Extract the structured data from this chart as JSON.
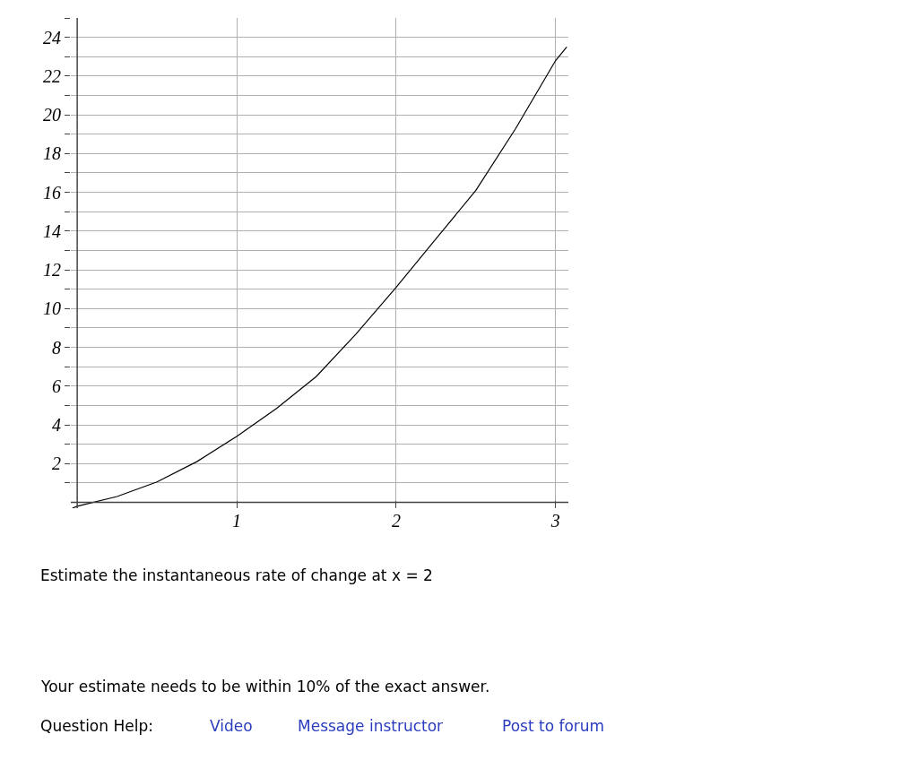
{
  "chart_data": {
    "type": "line",
    "x": [
      -0.03,
      0,
      0.25,
      0.5,
      0.75,
      1,
      1.25,
      1.5,
      1.75,
      2,
      2.25,
      2.5,
      2.75,
      3,
      3.07
    ],
    "series": [
      {
        "color": "#000000",
        "values": [
          -0.3,
          -0.2,
          0.3,
          1.05,
          2.1,
          3.4,
          4.85,
          6.5,
          8.7,
          11.1,
          13.6,
          16.1,
          19.3,
          22.8,
          23.5
        ]
      }
    ],
    "xlim": [
      -0.04,
      3.08
    ],
    "ylim": [
      -0.3,
      25
    ],
    "xticks": [
      1,
      2,
      3
    ],
    "yticks": [
      {
        "value": 1,
        "label": null
      },
      2,
      {
        "value": 3,
        "label": null
      },
      4,
      {
        "value": 5,
        "label": null
      },
      6,
      {
        "value": 7,
        "label": null
      },
      8,
      {
        "value": 9,
        "label": null
      },
      10,
      {
        "value": 11,
        "label": null
      },
      12,
      {
        "value": 13,
        "label": null
      },
      14,
      {
        "value": 15,
        "label": null
      },
      16,
      {
        "value": 17,
        "label": null
      },
      18,
      {
        "value": 19,
        "label": null
      },
      20,
      {
        "value": 21,
        "label": null
      },
      22,
      {
        "value": 23,
        "label": null
      },
      24,
      {
        "value": 25,
        "label": null
      }
    ],
    "grid": true,
    "marker": "none",
    "line_style": "solid",
    "annotations": [
      "Estimate the instantaneous rate of change at x = 2",
      "Your estimate needs to be within 10% of the exact answer.",
      "Question Help:",
      "Video",
      "Message instructor",
      "Post to forum"
    ]
  }
}
